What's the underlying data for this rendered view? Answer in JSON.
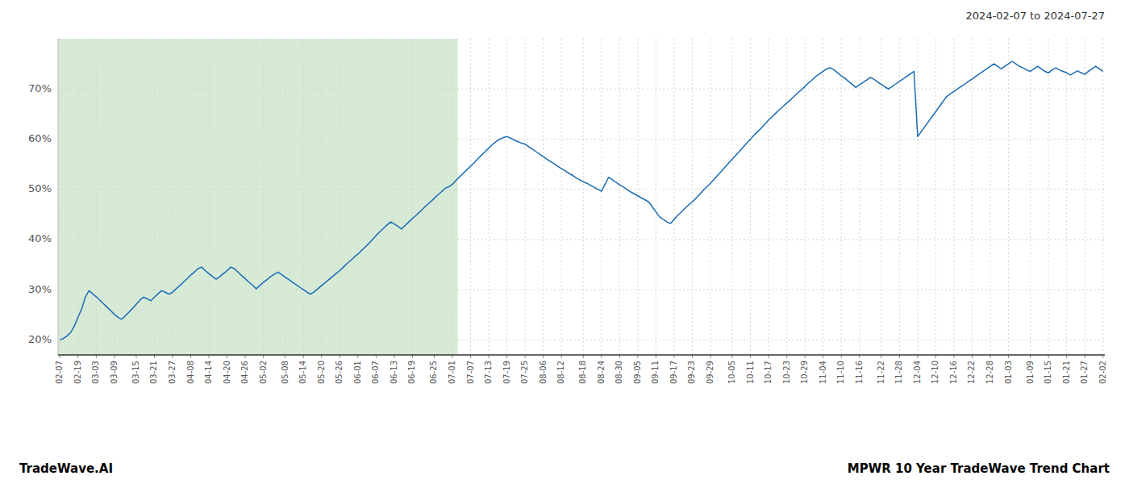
{
  "chart_data": {
    "type": "line",
    "subtitle": "2024-02-07 to 2024-07-27",
    "annotations": [
      "TradeWave.AI",
      "MPWR 10 Year TradeWave Trend Chart"
    ],
    "color": "#1a6bb5",
    "grid": true,
    "shade_start": 0,
    "shade_end": 109,
    "shade_color": "#d6ead6",
    "ylim": [
      17,
      80
    ],
    "yticks": [
      {
        "value": 20,
        "label": "20%"
      },
      {
        "value": 30,
        "label": "30%"
      },
      {
        "value": 40,
        "label": "40%"
      },
      {
        "value": 50,
        "label": "50%"
      },
      {
        "value": 60,
        "label": "60%"
      },
      {
        "value": 70,
        "label": "70%"
      }
    ],
    "categories": [
      "02-07",
      null,
      null,
      null,
      null,
      "02-19",
      null,
      null,
      null,
      null,
      "03-03",
      null,
      null,
      null,
      null,
      "03-09",
      null,
      null,
      null,
      null,
      null,
      "03-15",
      null,
      null,
      null,
      null,
      "03-21",
      null,
      null,
      null,
      null,
      "03-27",
      null,
      null,
      null,
      null,
      "04-08",
      null,
      null,
      null,
      null,
      "04-14",
      null,
      null,
      null,
      null,
      "04-20",
      null,
      null,
      null,
      null,
      "04-26",
      null,
      null,
      null,
      null,
      "05-02",
      null,
      null,
      null,
      null,
      null,
      "05-08",
      null,
      null,
      null,
      null,
      "05-14",
      null,
      null,
      null,
      null,
      "05-20",
      null,
      null,
      null,
      null,
      "05-26",
      null,
      null,
      null,
      null,
      "06-01",
      null,
      null,
      null,
      null,
      "06-07",
      null,
      null,
      null,
      null,
      "06-13",
      null,
      null,
      null,
      null,
      "06-19",
      null,
      null,
      null,
      null,
      null,
      "06-25",
      null,
      null,
      null,
      null,
      "07-01",
      null,
      null,
      null,
      null,
      "07-07",
      null,
      null,
      null,
      null,
      "07-13",
      null,
      null,
      null,
      null,
      "07-19",
      null,
      null,
      null,
      null,
      "07-25",
      null,
      null,
      null,
      null,
      "08-06",
      null,
      null,
      null,
      null,
      "08-12",
      null,
      null,
      null,
      null,
      null,
      "08-18",
      null,
      null,
      null,
      null,
      "08-24",
      null,
      null,
      null,
      null,
      "08-30",
      null,
      null,
      null,
      null,
      "09-05",
      null,
      null,
      null,
      null,
      "09-11",
      null,
      null,
      null,
      null,
      "09-17",
      null,
      null,
      null,
      null,
      "09-23",
      null,
      null,
      null,
      null,
      "09-29",
      null,
      null,
      null,
      null,
      null,
      "10-05",
      null,
      null,
      null,
      null,
      "10-11",
      null,
      null,
      null,
      null,
      "10-17",
      null,
      null,
      null,
      null,
      "10-23",
      null,
      null,
      null,
      null,
      "10-29",
      null,
      null,
      null,
      null,
      "11-04",
      null,
      null,
      null,
      null,
      "11-10",
      null,
      null,
      null,
      null,
      "11-16",
      null,
      null,
      null,
      null,
      null,
      "11-22",
      null,
      null,
      null,
      null,
      "11-28",
      null,
      null,
      null,
      null,
      "12-04",
      null,
      null,
      null,
      null,
      "12-10",
      null,
      null,
      null,
      null,
      "12-16",
      null,
      null,
      null,
      null,
      "12-22",
      null,
      null,
      null,
      null,
      "12-28",
      null,
      null,
      null,
      null,
      "01-03",
      null,
      null,
      null,
      null,
      null,
      "01-09",
      null,
      null,
      null,
      null,
      "01-15",
      null,
      null,
      null,
      null,
      "01-21",
      null,
      null,
      null,
      null,
      "01-27",
      null,
      null,
      null,
      null,
      "02-02"
    ],
    "values": [
      20.0,
      20.3,
      20.8,
      21.5,
      22.8,
      24.5,
      26.2,
      28.5,
      29.8,
      29.2,
      28.6,
      27.9,
      27.2,
      26.5,
      25.8,
      25.1,
      24.5,
      24.1,
      24.8,
      25.5,
      26.3,
      27.1,
      27.9,
      28.5,
      28.2,
      27.8,
      28.5,
      29.2,
      29.8,
      29.5,
      29.1,
      29.5,
      30.2,
      30.8,
      31.5,
      32.2,
      32.9,
      33.5,
      34.2,
      34.5,
      33.8,
      33.2,
      32.6,
      32.1,
      32.6,
      33.2,
      33.8,
      34.5,
      34.2,
      33.5,
      32.8,
      32.2,
      31.5,
      30.9,
      30.2,
      30.8,
      31.5,
      32.0,
      32.6,
      33.1,
      33.5,
      33.0,
      32.5,
      32.0,
      31.5,
      31.0,
      30.5,
      30.0,
      29.5,
      29.1,
      29.6,
      30.2,
      30.8,
      31.4,
      32.0,
      32.6,
      33.2,
      33.8,
      34.5,
      35.2,
      35.8,
      36.5,
      37.1,
      37.8,
      38.5,
      39.2,
      40.0,
      40.8,
      41.5,
      42.2,
      42.9,
      43.5,
      43.1,
      42.6,
      42.1,
      42.8,
      43.5,
      44.2,
      44.8,
      45.5,
      46.2,
      46.9,
      47.5,
      48.2,
      48.9,
      49.5,
      50.2,
      50.5,
      51.0,
      51.8,
      52.5,
      53.2,
      53.9,
      54.6,
      55.3,
      56.1,
      56.8,
      57.5,
      58.2,
      58.9,
      59.5,
      60.0,
      60.3,
      60.5,
      60.2,
      59.8,
      59.5,
      59.2,
      59.0,
      58.5,
      58.0,
      57.5,
      57.0,
      56.5,
      56.0,
      55.5,
      55.1,
      54.6,
      54.1,
      53.7,
      53.2,
      52.8,
      52.3,
      51.9,
      51.5,
      51.2,
      50.8,
      50.4,
      50.0,
      49.6,
      51.0,
      52.4,
      51.9,
      51.4,
      50.9,
      50.5,
      50.0,
      49.5,
      49.1,
      48.7,
      48.3,
      47.9,
      47.5,
      46.5,
      45.5,
      44.5,
      44.0,
      43.5,
      43.2,
      44.0,
      44.8,
      45.5,
      46.2,
      46.9,
      47.5,
      48.2,
      49.0,
      49.8,
      50.5,
      51.2,
      52.0,
      52.8,
      53.6,
      54.4,
      55.2,
      56.0,
      56.8,
      57.6,
      58.4,
      59.2,
      60.0,
      60.8,
      61.5,
      62.2,
      63.0,
      63.8,
      64.5,
      65.2,
      65.9,
      66.5,
      67.2,
      67.8,
      68.5,
      69.2,
      69.8,
      70.5,
      71.2,
      71.8,
      72.5,
      73.0,
      73.5,
      74.0,
      74.2,
      73.8,
      73.2,
      72.6,
      72.1,
      71.5,
      70.9,
      70.3,
      70.8,
      71.3,
      71.8,
      72.3,
      71.9,
      71.4,
      70.9,
      70.4,
      70.0,
      70.5,
      71.0,
      71.5,
      72.0,
      72.5,
      73.0,
      73.5,
      60.5,
      61.5,
      62.5,
      63.5,
      64.5,
      65.5,
      66.5,
      67.5,
      68.5,
      69.0,
      69.5,
      70.0,
      70.5,
      71.0,
      71.5,
      72.0,
      72.5,
      73.0,
      73.5,
      74.0,
      74.5,
      75.0,
      74.5,
      74.0,
      74.5,
      75.0,
      75.5,
      75.0,
      74.5,
      74.2,
      73.8,
      73.5,
      74.0,
      74.5,
      74.0,
      73.5,
      73.2,
      73.8,
      74.2,
      73.8,
      73.5,
      73.2,
      72.8,
      73.2,
      73.6,
      73.2,
      72.9,
      73.5,
      74.0,
      74.5,
      74.0,
      73.5
    ]
  }
}
